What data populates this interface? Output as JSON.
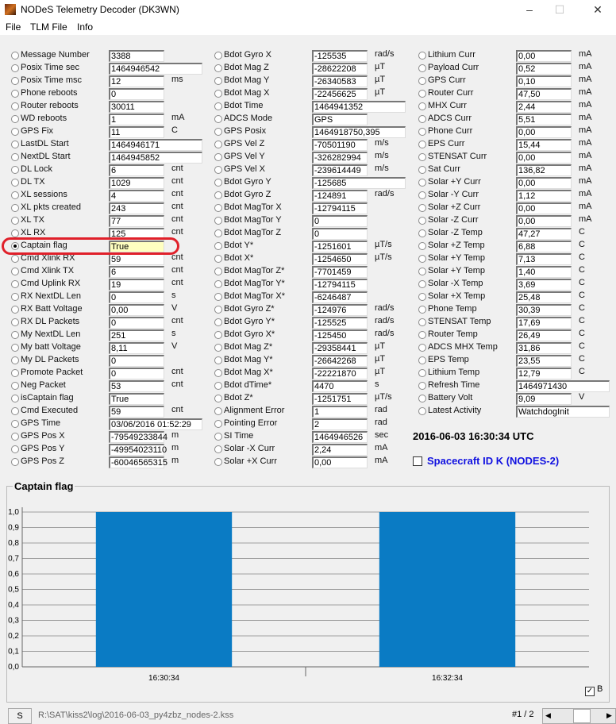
{
  "window": {
    "title": "NODeS Telemetry Decoder (DK3WN)",
    "minimize": "–",
    "maximize": "☐",
    "close": "✕"
  },
  "menu": [
    "File",
    "TLM File",
    "Info"
  ],
  "columns": [
    [
      {
        "label": "Message Number",
        "value": "3388",
        "unit": ""
      },
      {
        "label": "Posix Time sec",
        "value": "1464946542",
        "unit": ""
      },
      {
        "label": "Posix Time msc",
        "value": "12",
        "unit": "ms"
      },
      {
        "label": "Phone reboots",
        "value": "0",
        "unit": ""
      },
      {
        "label": "Router reboots",
        "value": "30011",
        "unit": ""
      },
      {
        "label": "WD reboots",
        "value": "1",
        "unit": "mA"
      },
      {
        "label": "GPS Fix",
        "value": "11",
        "unit": "C"
      },
      {
        "label": "LastDL Start",
        "value": "1464946171",
        "unit": ""
      },
      {
        "label": "NextDL Start",
        "value": "1464945852",
        "unit": ""
      },
      {
        "label": "DL Lock",
        "value": "6",
        "unit": "cnt"
      },
      {
        "label": "DL TX",
        "value": "1029",
        "unit": "cnt"
      },
      {
        "label": "XL sessions",
        "value": "4",
        "unit": "cnt"
      },
      {
        "label": "XL pkts created",
        "value": "243",
        "unit": "cnt"
      },
      {
        "label": "XL TX",
        "value": "77",
        "unit": "cnt"
      },
      {
        "label": "XL RX",
        "value": "125",
        "unit": "cnt"
      },
      {
        "label": "Captain flag",
        "value": "True",
        "unit": "",
        "selected": true
      },
      {
        "label": "Cmd Xlink RX",
        "value": "59",
        "unit": "cnt"
      },
      {
        "label": "Cmd Xlink TX",
        "value": "6",
        "unit": "cnt"
      },
      {
        "label": "Cmd Uplink RX",
        "value": "19",
        "unit": "cnt"
      },
      {
        "label": "RX NextDL Len",
        "value": "0",
        "unit": "s"
      },
      {
        "label": "RX Batt Voltage",
        "value": "0,00",
        "unit": "V"
      },
      {
        "label": "RX DL Packets",
        "value": "0",
        "unit": "cnt"
      },
      {
        "label": "My NextDL Len",
        "value": "251",
        "unit": "s"
      },
      {
        "label": "My batt Voltage",
        "value": "8,11",
        "unit": "V"
      },
      {
        "label": "My DL Packets",
        "value": "0",
        "unit": ""
      },
      {
        "label": "Promote Packet",
        "value": "0",
        "unit": "cnt"
      },
      {
        "label": "Neg Packet",
        "value": "53",
        "unit": "cnt"
      },
      {
        "label": "isCaptain flag",
        "value": "True",
        "unit": ""
      },
      {
        "label": "Cmd Executed",
        "value": "59",
        "unit": "cnt"
      },
      {
        "label": "GPS Time",
        "value": "03/06/2016 01:52:29",
        "unit": ""
      },
      {
        "label": "GPS Pos X",
        "value": "-79549233844",
        "unit": "m"
      },
      {
        "label": "GPS Pos Y",
        "value": "-49954023110",
        "unit": "m"
      },
      {
        "label": "GPS Pos Z",
        "value": "-60046565315",
        "unit": "m"
      }
    ],
    [
      {
        "label": "Bdot Gyro X",
        "value": "-125535",
        "unit": "rad/s"
      },
      {
        "label": "Bdot Mag Z",
        "value": "-28622208",
        "unit": "µT"
      },
      {
        "label": "Bdot Mag Y",
        "value": "-26340583",
        "unit": "µT"
      },
      {
        "label": "Bdot Mag X",
        "value": "-22456625",
        "unit": "µT"
      },
      {
        "label": "Bdot Time",
        "value": "1464941352",
        "unit": ""
      },
      {
        "label": "ADCS Mode",
        "value": "GPS",
        "unit": ""
      },
      {
        "label": "GPS Posix",
        "value": "1464918750,395",
        "unit": ""
      },
      {
        "label": "GPS Vel Z",
        "value": "-70501190",
        "unit": "m/s"
      },
      {
        "label": "GPS Vel Y",
        "value": "-326282994",
        "unit": "m/s"
      },
      {
        "label": "GPS Vel X",
        "value": "-239614449",
        "unit": "m/s"
      },
      {
        "label": "Bdot Gyro Y",
        "value": "-125685",
        "unit": ""
      },
      {
        "label": "Bdot Gyro Z",
        "value": "-124891",
        "unit": "rad/s"
      },
      {
        "label": "Bdot MagTor X",
        "value": "-12794115",
        "unit": ""
      },
      {
        "label": "Bdot MagTor Y",
        "value": "0",
        "unit": ""
      },
      {
        "label": "Bdot MagTor Z",
        "value": "0",
        "unit": ""
      },
      {
        "label": "Bdot Y*",
        "value": "-1251601",
        "unit": "µT/s"
      },
      {
        "label": "Bdot X*",
        "value": "-1254650",
        "unit": "µT/s"
      },
      {
        "label": "Bdot MagTor Z*",
        "value": "-7701459",
        "unit": ""
      },
      {
        "label": "Bdot MagTor Y*",
        "value": "-12794115",
        "unit": ""
      },
      {
        "label": "Bdot MagTor X*",
        "value": "-6246487",
        "unit": ""
      },
      {
        "label": "Bdot Gyro Z*",
        "value": "-124976",
        "unit": "rad/s"
      },
      {
        "label": "Bdot Gyro Y*",
        "value": "-125525",
        "unit": "rad/s"
      },
      {
        "label": "Bdot Gyro X*",
        "value": "-125450",
        "unit": "rad/s"
      },
      {
        "label": "Bdot Mag Z*",
        "value": "-29358441",
        "unit": "µT"
      },
      {
        "label": "Bdot Mag Y*",
        "value": "-26642268",
        "unit": "µT"
      },
      {
        "label": "Bdot Mag X*",
        "value": "-22221870",
        "unit": "µT"
      },
      {
        "label": "Bdot dTime*",
        "value": "4470",
        "unit": "s"
      },
      {
        "label": "Bdot Z*",
        "value": "-1251751",
        "unit": "µT/s"
      },
      {
        "label": "Alignment Error",
        "value": "1",
        "unit": "rad"
      },
      {
        "label": "Pointing Error",
        "value": "2",
        "unit": "rad"
      },
      {
        "label": "SI Time",
        "value": "1464946526",
        "unit": "sec"
      },
      {
        "label": "Solar -X Curr",
        "value": "2,24",
        "unit": "mA"
      },
      {
        "label": "Solar +X Curr",
        "value": "0,00",
        "unit": "mA"
      }
    ],
    [
      {
        "label": "Lithium Curr",
        "value": "0,00",
        "unit": "mA"
      },
      {
        "label": "Payload Curr",
        "value": "0,52",
        "unit": "mA"
      },
      {
        "label": "GPS Curr",
        "value": "0,10",
        "unit": "mA"
      },
      {
        "label": "Router Curr",
        "value": "47,50",
        "unit": "mA"
      },
      {
        "label": "MHX Curr",
        "value": "2,44",
        "unit": "mA"
      },
      {
        "label": "ADCS Curr",
        "value": "5,51",
        "unit": "mA"
      },
      {
        "label": "Phone Curr",
        "value": "0,00",
        "unit": "mA"
      },
      {
        "label": "EPS Curr",
        "value": "15,44",
        "unit": "mA"
      },
      {
        "label": "STENSAT Curr",
        "value": "0,00",
        "unit": "mA"
      },
      {
        "label": "Sat Curr",
        "value": "136,82",
        "unit": "mA"
      },
      {
        "label": "Solar +Y Curr",
        "value": "0,00",
        "unit": "mA"
      },
      {
        "label": "Solar -Y Curr",
        "value": "1,12",
        "unit": "mA"
      },
      {
        "label": "Solar +Z Curr",
        "value": "0,00",
        "unit": "mA"
      },
      {
        "label": "Solar -Z Curr",
        "value": "0,00",
        "unit": "mA"
      },
      {
        "label": "Solar -Z Temp",
        "value": "47,27",
        "unit": "C"
      },
      {
        "label": "Solar +Z Temp",
        "value": "6,88",
        "unit": "C"
      },
      {
        "label": "Solar +Y Temp",
        "value": "7,13",
        "unit": "C"
      },
      {
        "label": "Solar +Y Temp",
        "value": "1,40",
        "unit": "C"
      },
      {
        "label": "Solar -X Temp",
        "value": "3,69",
        "unit": "C"
      },
      {
        "label": "Solar +X Temp",
        "value": "25,48",
        "unit": "C"
      },
      {
        "label": "Phone Temp",
        "value": "30,39",
        "unit": "C"
      },
      {
        "label": "STENSAT Temp",
        "value": "17,69",
        "unit": "C"
      },
      {
        "label": "Router Temp",
        "value": "26,49",
        "unit": "C"
      },
      {
        "label": "ADCS MHX Temp",
        "value": "31,86",
        "unit": "C"
      },
      {
        "label": "EPS Temp",
        "value": "23,55",
        "unit": "C"
      },
      {
        "label": "Lithium Temp",
        "value": "12,79",
        "unit": "C"
      },
      {
        "label": "Refresh Time",
        "value": "1464971430",
        "unit": ""
      },
      {
        "label": "Battery Volt",
        "value": "9,09",
        "unit": "V"
      },
      {
        "label": "Latest Activity",
        "value": "WatchdogInit",
        "unit": ""
      }
    ]
  ],
  "utc_time": "2016-06-03 16:30:34 UTC",
  "spacecraft": {
    "label": "Spacecraft ID K (NODES-2)",
    "checked": false,
    "color": "#1010e0"
  },
  "chart_group_title": "Captain flag",
  "chart_data": {
    "type": "bar",
    "categories": [
      "16:30:34",
      "16:32:34"
    ],
    "values": [
      1.0,
      1.0
    ],
    "ylim": [
      0,
      1
    ],
    "yticks": [
      "0,0",
      "0,1",
      "0,2",
      "0,3",
      "0,4",
      "0,5",
      "0,6",
      "0,7",
      "0,8",
      "0,9",
      "1,0"
    ],
    "grid": true,
    "bar_color": "#0a7bc4"
  },
  "legend_checkbox": {
    "label": "B",
    "checked": true
  },
  "status": {
    "s_button": "S",
    "file_path": "R:\\SAT\\kiss2\\log\\2016-06-03_py4zbz_nodes-2.kss",
    "record": "#1 / 2"
  }
}
